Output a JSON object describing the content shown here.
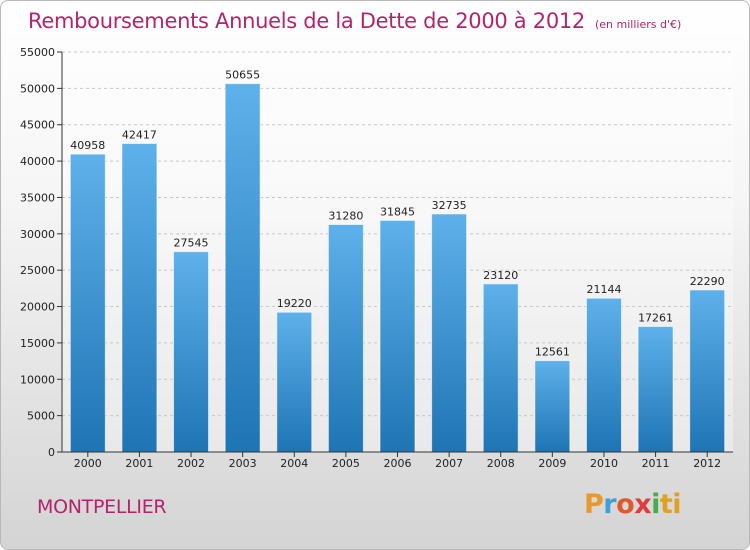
{
  "header": {
    "title": "Remboursements Annuels de la Dette de 2000 à 2012",
    "unit": "(en milliers d'€)"
  },
  "footer": {
    "city": "MONTPELLIER",
    "brand_letters": [
      "P",
      "r",
      "o",
      "x",
      "i",
      "t",
      "i"
    ]
  },
  "colors": {
    "title": "#b3246b",
    "bar_top": "#5eb1ea",
    "bar_bottom": "#1f74b4"
  },
  "chart_data": {
    "type": "bar",
    "title": "Remboursements Annuels de la Dette de 2000 à 2012",
    "xlabel": "",
    "ylabel": "",
    "categories": [
      "2000",
      "2001",
      "2002",
      "2003",
      "2004",
      "2005",
      "2006",
      "2007",
      "2008",
      "2009",
      "2010",
      "2011",
      "2012"
    ],
    "values": [
      40958,
      42417,
      27545,
      50655,
      19220,
      31280,
      31845,
      32735,
      23120,
      12561,
      21144,
      17261,
      22290
    ],
    "ylim": [
      0,
      55000
    ],
    "yticks": [
      0,
      5000,
      10000,
      15000,
      20000,
      25000,
      30000,
      35000,
      40000,
      45000,
      50000,
      55000
    ],
    "grid": true
  }
}
